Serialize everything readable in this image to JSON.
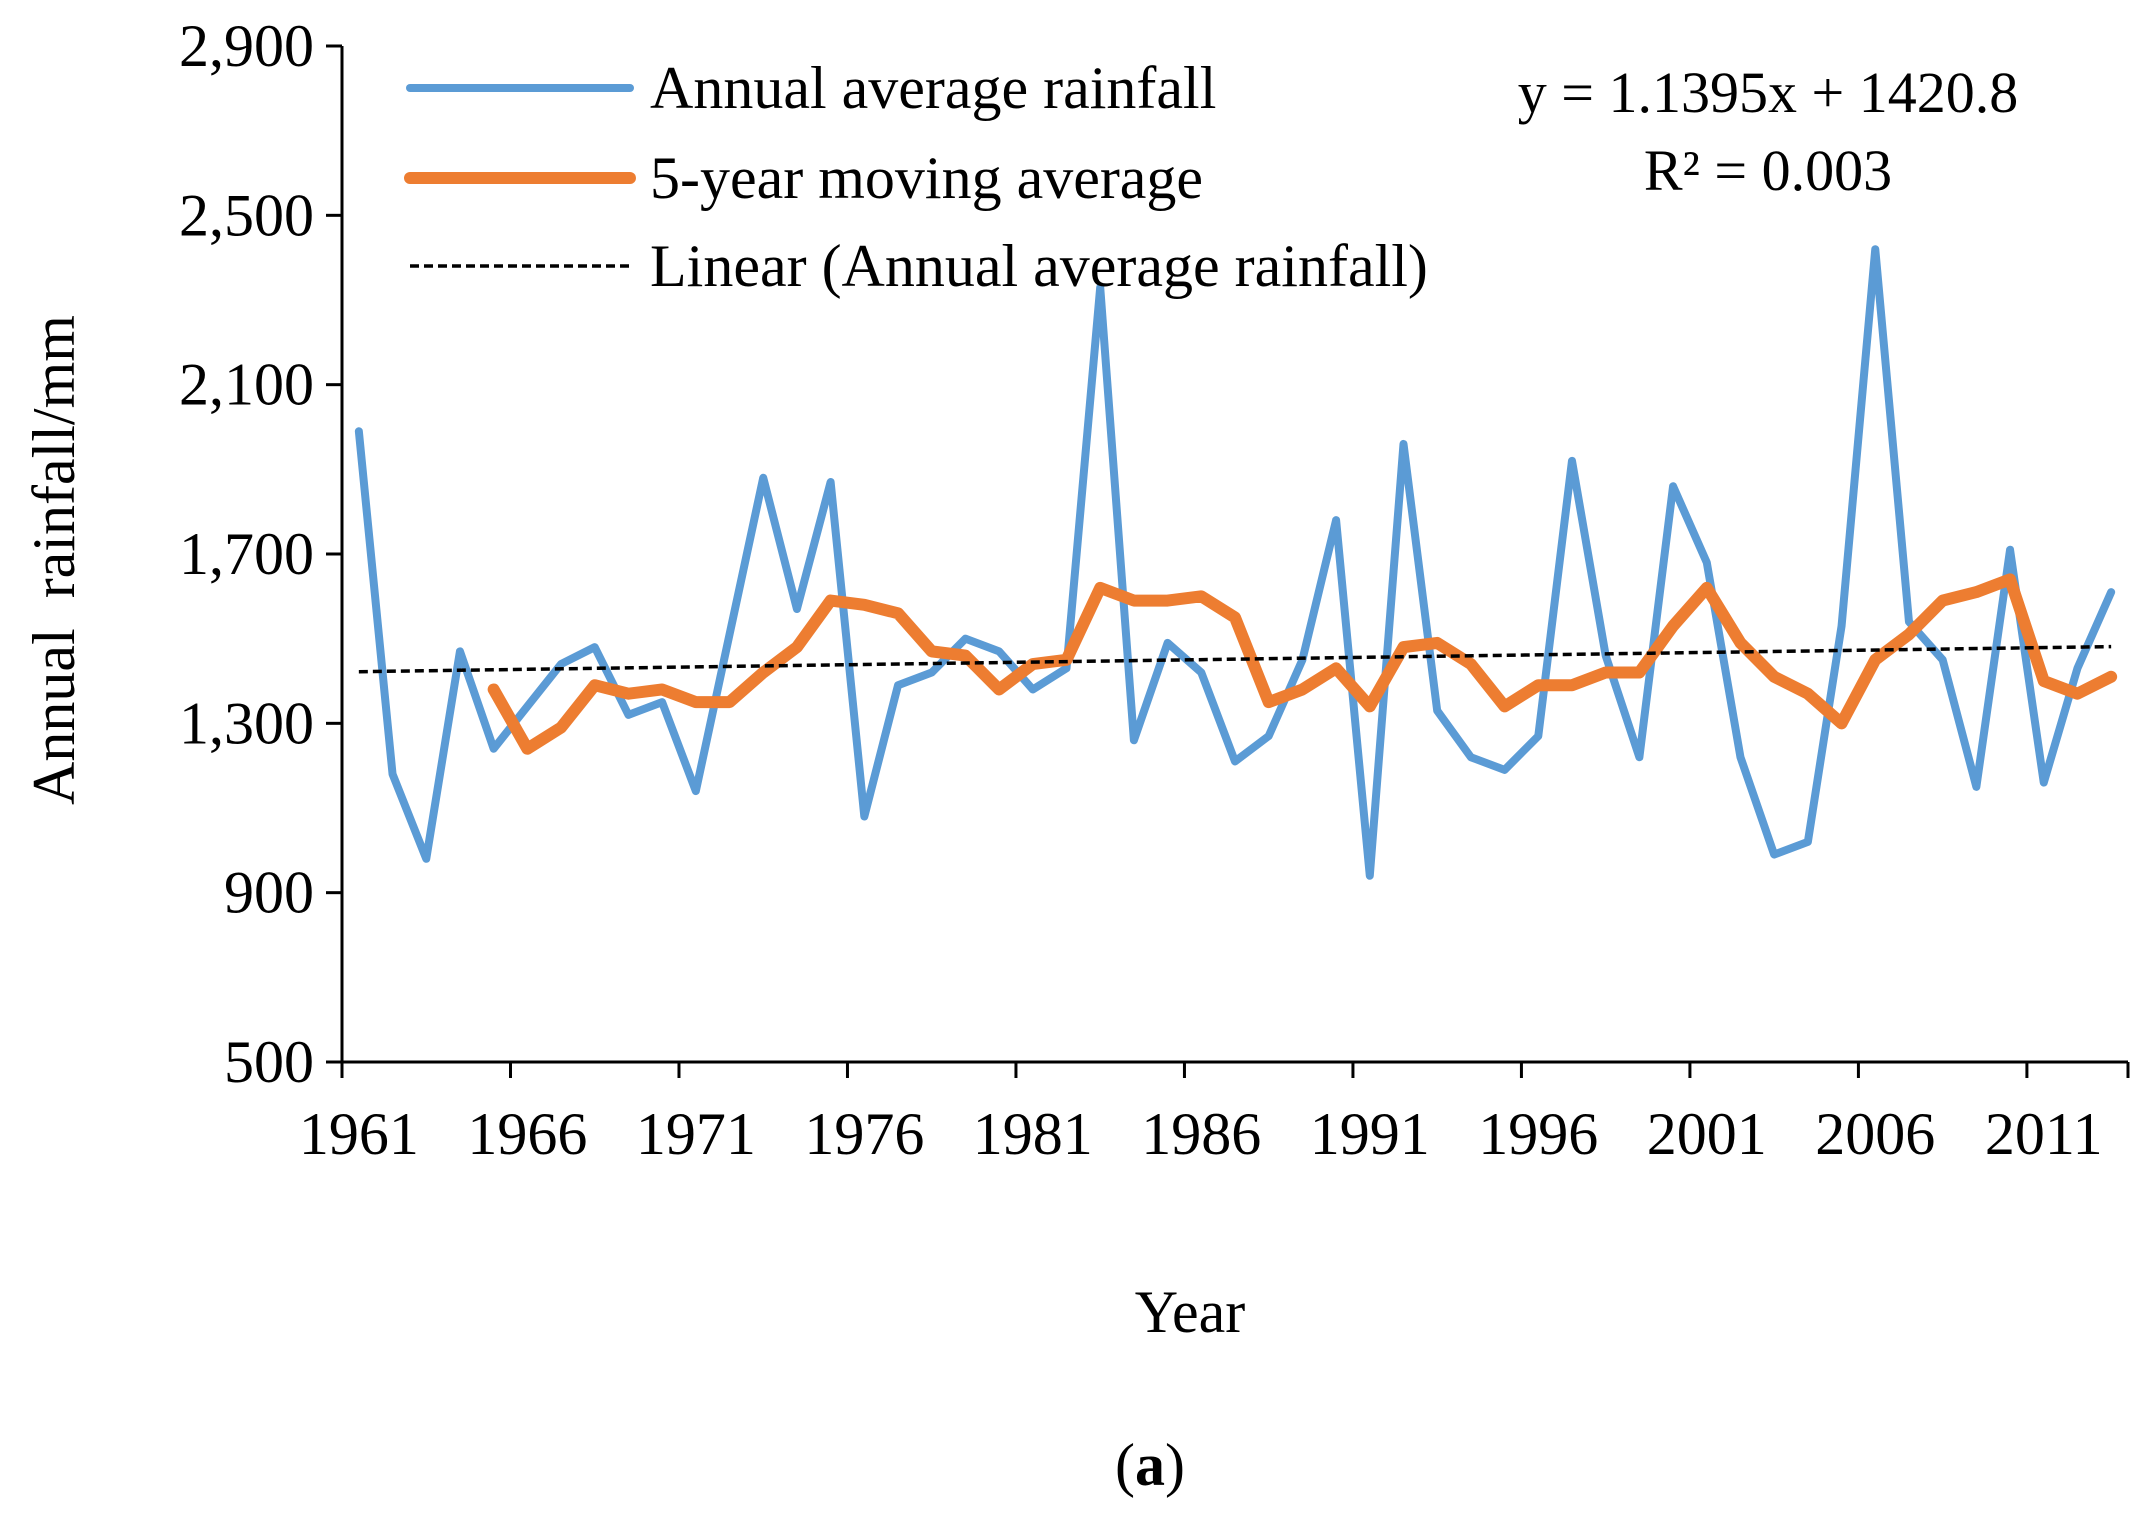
{
  "chart_data": {
    "type": "line",
    "title": "",
    "xlabel": "Year",
    "ylabel": "Annual  rainfall/mm",
    "caption_open": "(",
    "caption_letter": "a",
    "caption_close": ")",
    "ylim": [
      500,
      2900
    ],
    "yticks": [
      500,
      900,
      1300,
      1700,
      2100,
      2500,
      2900
    ],
    "ytick_labels": [
      "500",
      "900",
      "1,300",
      "1,700",
      "2,100",
      "2,500",
      "2,900"
    ],
    "xlim": [
      1960.5,
      2013.5
    ],
    "xticks": [
      1961,
      1966,
      1971,
      1976,
      1981,
      1986,
      1991,
      1996,
      2001,
      2006,
      2011
    ],
    "xtick_labels": [
      "1961",
      "1966",
      "1971",
      "1976",
      "1981",
      "1986",
      "1991",
      "1996",
      "2001",
      "2006",
      "2011"
    ],
    "legend_position": "top-left",
    "series": [
      {
        "name": "Annual average rainfall",
        "color": "#5b9bd5",
        "style": "solid",
        "x": [
          1961,
          1962,
          1963,
          1964,
          1965,
          1966,
          1967,
          1968,
          1969,
          1970,
          1971,
          1972,
          1973,
          1974,
          1975,
          1976,
          1977,
          1978,
          1979,
          1980,
          1981,
          1982,
          1983,
          1984,
          1985,
          1986,
          1987,
          1988,
          1989,
          1990,
          1991,
          1992,
          1993,
          1994,
          1995,
          1996,
          1997,
          1998,
          1999,
          2000,
          2001,
          2002,
          2003,
          2004,
          2005,
          2006,
          2007,
          2008,
          2009,
          2010,
          2011,
          2012,
          2013
        ],
        "values": [
          1990,
          1180,
          980,
          1470,
          1240,
          1340,
          1440,
          1480,
          1320,
          1350,
          1140,
          1510,
          1880,
          1570,
          1870,
          1080,
          1390,
          1420,
          1500,
          1470,
          1380,
          1430,
          2330,
          1260,
          1490,
          1420,
          1210,
          1270,
          1450,
          1780,
          940,
          1960,
          1330,
          1220,
          1190,
          1270,
          1920,
          1460,
          1220,
          1860,
          1680,
          1220,
          990,
          1020,
          1530,
          2420,
          1540,
          1450,
          1150,
          1710,
          1160,
          1430,
          1610
        ]
      },
      {
        "name": "5-year moving average",
        "color": "#ed7d31",
        "style": "solid",
        "x": [
          1965,
          1966,
          1967,
          1968,
          1969,
          1970,
          1971,
          1972,
          1973,
          1974,
          1975,
          1976,
          1977,
          1978,
          1979,
          1980,
          1981,
          1982,
          1983,
          1984,
          1985,
          1986,
          1987,
          1988,
          1989,
          1990,
          1991,
          1992,
          1993,
          1994,
          1995,
          1996,
          1997,
          1998,
          1999,
          2000,
          2001,
          2002,
          2003,
          2004,
          2005,
          2006,
          2007,
          2008,
          2009,
          2010,
          2011,
          2012,
          2013
        ],
        "values": [
          1380,
          1240,
          1290,
          1390,
          1370,
          1380,
          1350,
          1350,
          1420,
          1480,
          1590,
          1580,
          1560,
          1470,
          1460,
          1380,
          1440,
          1450,
          1620,
          1590,
          1590,
          1600,
          1550,
          1350,
          1380,
          1430,
          1340,
          1480,
          1490,
          1440,
          1340,
          1390,
          1390,
          1420,
          1420,
          1530,
          1620,
          1490,
          1410,
          1370,
          1300,
          1450,
          1510,
          1590,
          1610,
          1640,
          1400,
          1370,
          1410
        ]
      },
      {
        "name": "Linear (Annual average rainfall)",
        "color": "#000000",
        "style": "dashed",
        "slope": 1.1395,
        "intercept": 1420.8,
        "x_start_index": 1,
        "x_end_index": 53,
        "first_year": 1961
      }
    ],
    "trendline_equation": "y = 1.1395x + 1420.8",
    "trendline_r2": "R² = 0.003"
  }
}
